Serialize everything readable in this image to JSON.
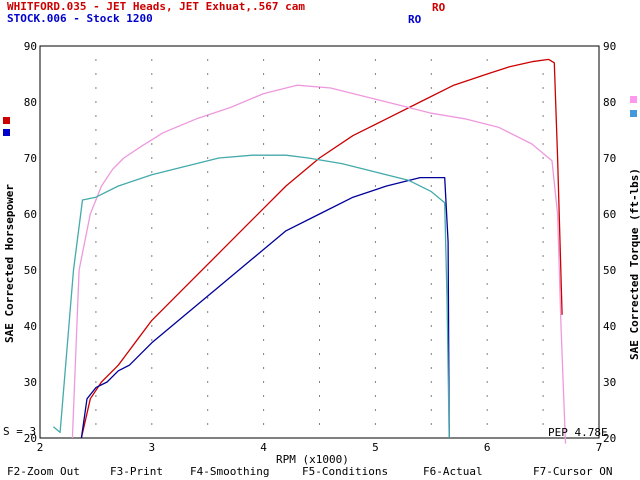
{
  "header": {
    "run1": "WHITFORD.035 - JET Heads, JET Exhuat,.567 cam",
    "run1_ro": "RO",
    "run2": "STOCK.006 - Stock 1200",
    "run2_ro": "RO"
  },
  "colors": {
    "run1_hp": "#cc0000",
    "run1_tq": "#ee99dd",
    "run2_hp": "#000099",
    "run2_tq": "#44aaaa",
    "legend_run1_left": "#cc0000",
    "legend_run2_left": "#0000cc",
    "legend_run1_right": "#ff99ee",
    "legend_run2_right": "#4499dd"
  },
  "status": {
    "smoothing": "S = 3",
    "pep": "PEP 4.78E"
  },
  "function_keys": [
    "F2-Zoom Out",
    "F3-Print",
    "F4-Smoothing",
    "F5-Conditions",
    "F6-Actual",
    "F7-Cursor ON"
  ],
  "chart_data": {
    "type": "line",
    "xlabel": "RPM (x1000)",
    "ylabel_left": "SAE Corrected Horsepower",
    "ylabel_right": "SAE Corrected Torque (ft-lbs)",
    "xlim": [
      2,
      7
    ],
    "ylim": [
      20,
      90
    ],
    "x_ticks": [
      2,
      3,
      4,
      5,
      6,
      7
    ],
    "y_ticks": [
      20,
      30,
      40,
      50,
      60,
      70,
      80,
      90
    ],
    "grid": "dotted",
    "series": [
      {
        "key": "run1_hp",
        "axis": "left",
        "x": [
          2.37,
          2.45,
          2.55,
          2.7,
          2.85,
          3.0,
          3.3,
          3.6,
          3.9,
          4.2,
          4.5,
          4.8,
          5.1,
          5.4,
          5.7,
          6.0,
          6.2,
          6.4,
          6.55,
          6.6,
          6.63,
          6.67
        ],
        "y": [
          20,
          27,
          30,
          33,
          37,
          41,
          47,
          53,
          59,
          65,
          70,
          74,
          77,
          80,
          83,
          85,
          86.3,
          87.2,
          87.6,
          87.0,
          70,
          42
        ]
      },
      {
        "key": "run1_tq",
        "axis": "right",
        "x": [
          2.29,
          2.35,
          2.45,
          2.55,
          2.65,
          2.75,
          2.9,
          3.1,
          3.4,
          3.7,
          4.0,
          4.3,
          4.6,
          4.9,
          5.2,
          5.5,
          5.8,
          6.1,
          6.4,
          6.58,
          6.63,
          6.66,
          6.7
        ],
        "y": [
          20,
          50,
          60,
          65,
          68,
          70,
          72,
          74.5,
          77,
          79,
          81.5,
          83,
          82.5,
          81,
          79.5,
          78,
          77,
          75.5,
          72.5,
          69.5,
          60,
          40,
          19
        ]
      },
      {
        "key": "run2_hp",
        "axis": "left",
        "x": [
          2.37,
          2.42,
          2.5,
          2.6,
          2.7,
          2.8,
          3.0,
          3.3,
          3.6,
          3.9,
          4.2,
          4.5,
          4.8,
          5.1,
          5.4,
          5.62,
          5.65,
          5.66
        ],
        "y": [
          20,
          27,
          29,
          30,
          32,
          33,
          37,
          42,
          47,
          52,
          57,
          60,
          63,
          65,
          66.5,
          66.5,
          55,
          20
        ]
      },
      {
        "key": "run2_tq",
        "axis": "right",
        "x": [
          2.12,
          2.18,
          2.3,
          2.38,
          2.5,
          2.7,
          3.0,
          3.3,
          3.6,
          3.9,
          4.2,
          4.4,
          4.7,
          5.0,
          5.3,
          5.5,
          5.62,
          5.64,
          5.66
        ],
        "y": [
          22,
          21,
          50,
          62.5,
          63,
          65,
          67,
          68.5,
          70,
          70.5,
          70.5,
          70,
          69,
          67.5,
          66,
          64,
          62,
          45,
          20
        ]
      }
    ]
  }
}
